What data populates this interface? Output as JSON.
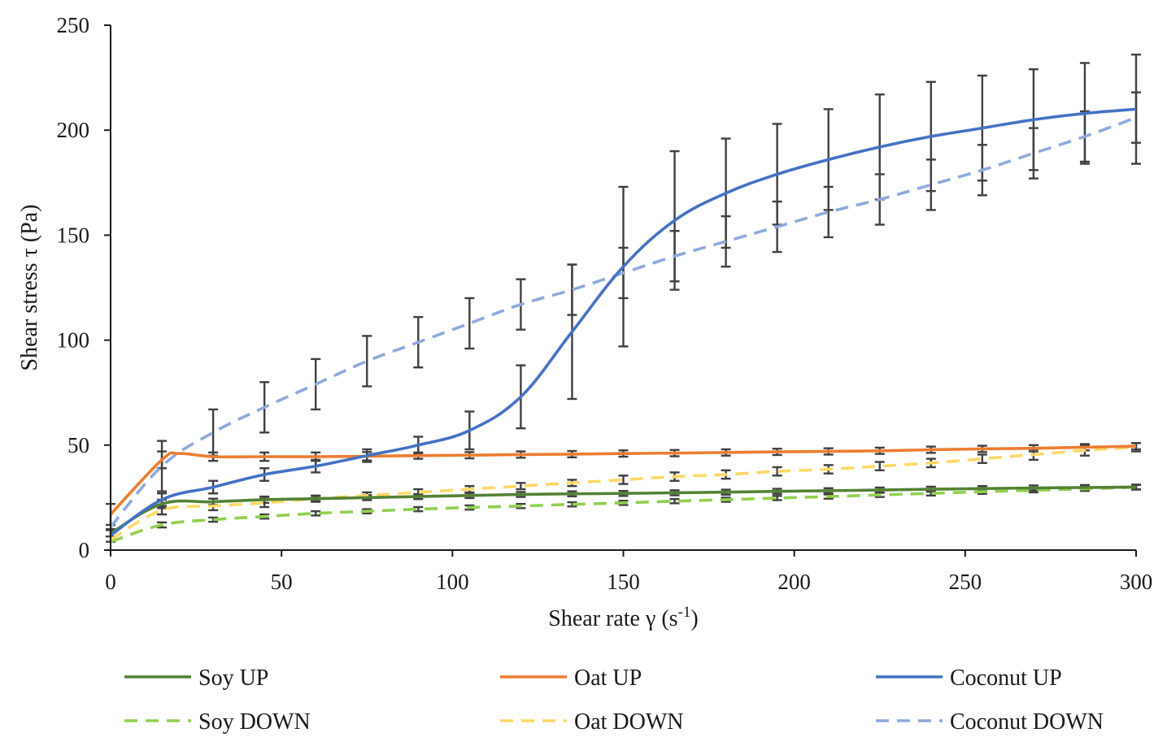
{
  "chart_data": {
    "type": "line",
    "title": "",
    "xlabel": "Shear rate γ (s",
    "xlabel_sup": "-1",
    "xlabel_end": ")",
    "ylabel": "Shear stress τ (Pa)",
    "xlim": [
      0,
      300
    ],
    "ylim": [
      0,
      250
    ],
    "xticks": [
      0,
      50,
      100,
      150,
      200,
      250,
      300
    ],
    "yticks": [
      0,
      50,
      100,
      150,
      200,
      250
    ],
    "legend_position": "bottom",
    "series": [
      {
        "name": "Soy UP",
        "color": "#548235",
        "dash": "solid",
        "x": [
          0,
          15,
          30,
          45,
          60,
          75,
          90,
          105,
          120,
          135,
          150,
          165,
          180,
          195,
          210,
          225,
          240,
          255,
          270,
          285,
          300
        ],
        "y": [
          8,
          22,
          23,
          24,
          24.5,
          25,
          25.5,
          26,
          26.5,
          26.8,
          27,
          27.3,
          27.6,
          28,
          28.3,
          28.6,
          29,
          29.3,
          29.6,
          29.8,
          30
        ],
        "err": [
          1.5,
          2,
          1.5,
          1.5,
          1.2,
          1.2,
          1.2,
          1.2,
          1.2,
          1.2,
          1.2,
          1.2,
          1.2,
          1.2,
          1.2,
          1.2,
          1.2,
          1.2,
          1.2,
          1.2,
          1.2
        ]
      },
      {
        "name": "Oat UP",
        "color": "#ED7D31",
        "dash": "solid",
        "x": [
          0,
          15,
          20,
          30,
          45,
          60,
          75,
          90,
          105,
          120,
          135,
          150,
          165,
          180,
          195,
          210,
          225,
          240,
          255,
          270,
          285,
          300
        ],
        "y": [
          17,
          43,
          46,
          44.5,
          44.5,
          44.5,
          44.7,
          45,
          45.2,
          45.5,
          45.7,
          46,
          46.2,
          46.5,
          46.8,
          47,
          47.3,
          47.8,
          48.2,
          48.5,
          49,
          49.5
        ],
        "err": [
          5,
          4,
          0,
          2,
          2,
          2,
          2,
          1.5,
          1.5,
          1.5,
          1.5,
          1.5,
          1.5,
          1.5,
          1.5,
          1.5,
          1.5,
          1.5,
          1.5,
          1.5,
          1.5,
          1.5
        ]
      },
      {
        "name": "Coconut UP",
        "color": "#4472C4",
        "dash": "solid",
        "x": [
          0,
          15,
          30,
          45,
          60,
          75,
          90,
          105,
          120,
          135,
          150,
          165,
          180,
          195,
          210,
          225,
          240,
          255,
          270,
          285,
          300
        ],
        "y": [
          7,
          24,
          30,
          36,
          40,
          45,
          50,
          57,
          73,
          104,
          135,
          157,
          170,
          179,
          186,
          192,
          197,
          201,
          205,
          208,
          210
        ],
        "err": [
          3,
          3,
          3,
          3,
          3,
          3,
          4,
          9,
          15,
          32,
          38,
          33,
          26,
          24,
          24,
          25,
          26,
          25,
          24,
          24,
          26
        ]
      },
      {
        "name": "Soy DOWN",
        "color": "#92D050",
        "dash": "dashed",
        "x": [
          0,
          15,
          30,
          45,
          60,
          75,
          90,
          105,
          120,
          135,
          150,
          165,
          180,
          195,
          210,
          225,
          240,
          255,
          270,
          285,
          300
        ],
        "y": [
          4,
          12,
          14.5,
          16,
          17.5,
          18.5,
          19.5,
          20.3,
          21,
          21.8,
          22.5,
          23.3,
          24,
          24.8,
          25.5,
          26.3,
          27,
          27.8,
          28.5,
          29.2,
          30
        ],
        "err": [
          0,
          1.2,
          1,
          1,
          1,
          1,
          1,
          1,
          1,
          1,
          1,
          1,
          1,
          1,
          1,
          1,
          1,
          1,
          1,
          1,
          1
        ]
      },
      {
        "name": "Oat DOWN",
        "color": "#FFD966",
        "dash": "dashed",
        "x": [
          0,
          15,
          30,
          45,
          60,
          75,
          90,
          105,
          120,
          135,
          150,
          165,
          180,
          195,
          210,
          225,
          240,
          255,
          270,
          285,
          300
        ],
        "y": [
          5,
          19,
          21,
          22.5,
          24.5,
          26,
          27.5,
          29,
          30.5,
          32,
          33.5,
          35,
          36,
          37.5,
          38.5,
          40,
          41.5,
          43.5,
          45.5,
          47.5,
          49
        ],
        "err": [
          0,
          2,
          2,
          2,
          1.5,
          1.5,
          1.5,
          1.5,
          1.5,
          1.5,
          2,
          2,
          2,
          2,
          2,
          2,
          2,
          2,
          2.5,
          2.5,
          2
        ]
      },
      {
        "name": "Coconut DOWN",
        "color": "#8FAADC",
        "dash": "dashed",
        "x": [
          0,
          15,
          30,
          45,
          60,
          75,
          90,
          105,
          120,
          135,
          150,
          165,
          180,
          195,
          210,
          225,
          240,
          255,
          270,
          285,
          300
        ],
        "y": [
          11,
          40,
          56,
          68,
          79,
          90,
          99,
          108,
          117,
          124,
          132,
          140,
          147,
          154,
          161,
          167,
          174,
          181,
          189,
          197,
          206
        ],
        "err": [
          0,
          12,
          11,
          12,
          12,
          12,
          12,
          12,
          12,
          12,
          12,
          12,
          12,
          12,
          12,
          12,
          12,
          12,
          12,
          12,
          12
        ]
      }
    ]
  }
}
